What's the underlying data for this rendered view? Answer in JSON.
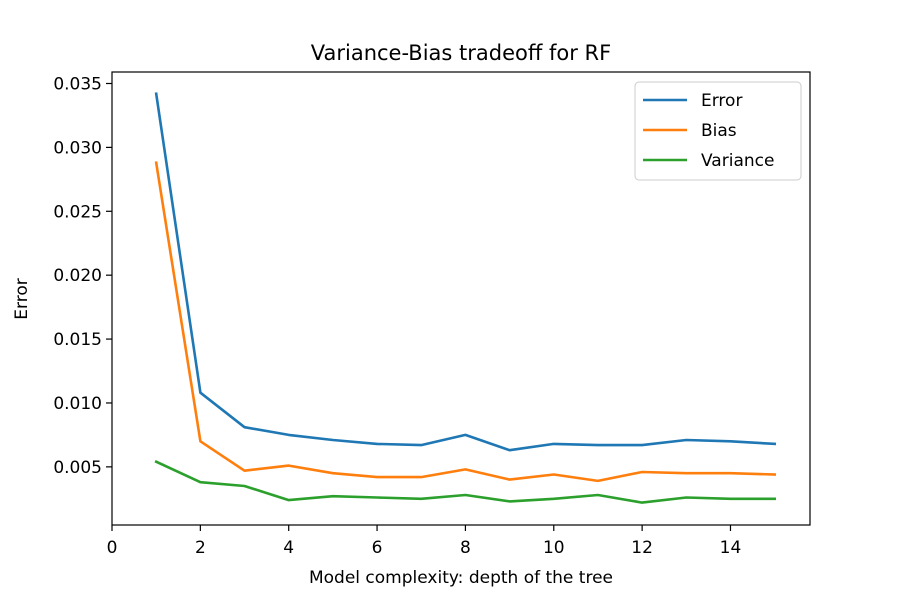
{
  "chart_data": {
    "type": "line",
    "title": "Variance-Bias tradeoff for RF",
    "xlabel": "Model complexity: depth of the tree",
    "ylabel": "Error",
    "xlim": [
      0,
      15.8
    ],
    "ylim": [
      0.00045,
      0.0359
    ],
    "xticks": [
      0,
      2,
      4,
      6,
      8,
      10,
      12,
      14
    ],
    "xtick_labels": [
      "0",
      "2",
      "4",
      "6",
      "8",
      "10",
      "12",
      "14"
    ],
    "yticks": [
      0.005,
      0.01,
      0.015,
      0.02,
      0.025,
      0.03,
      0.035
    ],
    "ytick_labels": [
      "0.005",
      "0.010",
      "0.015",
      "0.020",
      "0.025",
      "0.030",
      "0.035"
    ],
    "grid": false,
    "legend_position": "top-right",
    "x": [
      1,
      2,
      3,
      4,
      5,
      6,
      7,
      8,
      9,
      10,
      11,
      12,
      13,
      14,
      15
    ],
    "series": [
      {
        "name": "Error",
        "color": "#1f77b4",
        "values": [
          0.0342,
          0.0108,
          0.0081,
          0.0075,
          0.0071,
          0.0068,
          0.0067,
          0.0075,
          0.0063,
          0.0068,
          0.0067,
          0.0067,
          0.0071,
          0.007,
          0.0068
        ]
      },
      {
        "name": "Bias",
        "color": "#ff7f0e",
        "values": [
          0.0288,
          0.007,
          0.0047,
          0.0051,
          0.0045,
          0.0042,
          0.0042,
          0.0048,
          0.004,
          0.0044,
          0.0039,
          0.0046,
          0.0045,
          0.0045,
          0.0044
        ]
      },
      {
        "name": "Variance",
        "color": "#2ca02c",
        "values": [
          0.0054,
          0.0038,
          0.0035,
          0.0024,
          0.0027,
          0.0026,
          0.0025,
          0.0028,
          0.0023,
          0.0025,
          0.0028,
          0.0022,
          0.0026,
          0.0025,
          0.0025
        ]
      }
    ]
  }
}
